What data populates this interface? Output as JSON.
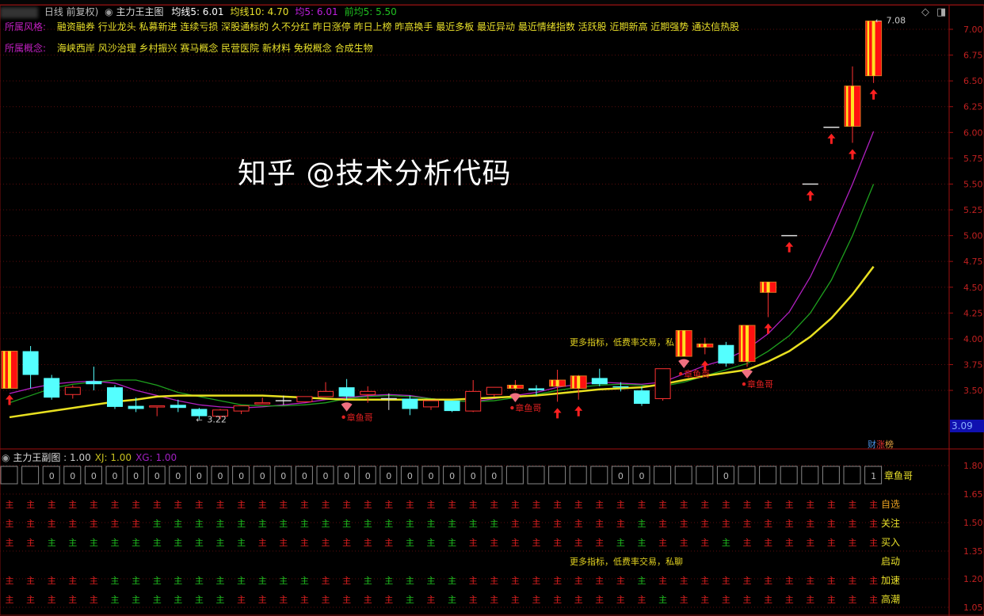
{
  "header": {
    "period": "日线 前复权)",
    "indicator_name": "主力王主图",
    "ma_items": [
      {
        "label": "均线5: 6.01",
        "color": "#ffffff"
      },
      {
        "label": "均线10: 4.70",
        "color": "#e8e02a"
      },
      {
        "label": "均5: 6.01",
        "color": "#c020e0"
      },
      {
        "label": "前均5: 5.50",
        "color": "#20c020"
      }
    ]
  },
  "style_row": {
    "label": "所属风格:",
    "tags": "融资融券 行业龙头 私募新进 连续亏损 深股通标的 久不分红 昨日涨停 昨日上榜 昨高换手 最近多板 最近异动 最近情绪指数 活跃股 近期新高 近期强势 通达信热股"
  },
  "concept_row": {
    "label": "所属概念:",
    "tags": "海峡西岸 风沙治理 乡村振兴 赛马概念 民营医院 新材料 免税概念 合成生物"
  },
  "main_chart_promo": "更多指标，低费率交易，私",
  "sub_chart_promo": "更多指标，低费率交易，私聊",
  "watermark": "知乎 @技术分析代码",
  "current_price_tag": "3.09",
  "rank_badge": {
    "parts": [
      "财",
      "涨",
      "榜"
    ],
    "colors": [
      "#4a90e0",
      "#e03030",
      "#e0a040"
    ]
  },
  "icons": [
    "diamond-icon",
    "panel-toggle-icon"
  ],
  "chart_data": {
    "type": "candlestick",
    "y_axis_ticks": [
      "7.00",
      "6.75",
      "6.50",
      "6.25",
      "6.00",
      "5.75",
      "5.50",
      "5.25",
      "5.00",
      "4.75",
      "4.50",
      "4.25",
      "4.00",
      "3.75",
      "3.50"
    ],
    "ylim": [
      3.2,
      7.1
    ],
    "grid": true,
    "high_label": "7.08",
    "low_label": "3.22",
    "candles_ohlc": [
      [
        3.52,
        3.88,
        3.52,
        3.88
      ],
      [
        3.88,
        3.93,
        3.52,
        3.65
      ],
      [
        3.62,
        3.65,
        3.41,
        3.43
      ],
      [
        3.46,
        3.55,
        3.42,
        3.53
      ],
      [
        3.59,
        3.73,
        3.5,
        3.56
      ],
      [
        3.53,
        3.55,
        3.32,
        3.34
      ],
      [
        3.35,
        3.43,
        3.29,
        3.32
      ],
      [
        3.34,
        3.35,
        3.25,
        3.35
      ],
      [
        3.36,
        3.41,
        3.29,
        3.33
      ],
      [
        3.32,
        3.33,
        3.22,
        3.25
      ],
      [
        3.25,
        3.32,
        3.22,
        3.31
      ],
      [
        3.3,
        3.35,
        3.27,
        3.35
      ],
      [
        3.37,
        3.43,
        3.37,
        3.38
      ],
      [
        3.4,
        3.45,
        3.36,
        3.4
      ],
      [
        3.39,
        3.44,
        3.39,
        3.44
      ],
      [
        3.44,
        3.58,
        3.44,
        3.49
      ],
      [
        3.53,
        3.61,
        3.41,
        3.44
      ],
      [
        3.46,
        3.54,
        3.38,
        3.49
      ],
      [
        3.42,
        3.47,
        3.31,
        3.42
      ],
      [
        3.42,
        3.45,
        3.26,
        3.32
      ],
      [
        3.34,
        3.4,
        3.31,
        3.4
      ],
      [
        3.4,
        3.4,
        3.29,
        3.3
      ],
      [
        3.3,
        3.6,
        3.29,
        3.49
      ],
      [
        3.46,
        3.53,
        3.44,
        3.53
      ],
      [
        3.52,
        3.6,
        3.5,
        3.55
      ],
      [
        3.52,
        3.55,
        3.45,
        3.5
      ],
      [
        3.54,
        3.7,
        3.39,
        3.6
      ],
      [
        3.52,
        3.65,
        3.41,
        3.64
      ],
      [
        3.62,
        3.71,
        3.54,
        3.56
      ],
      [
        3.54,
        3.58,
        3.49,
        3.53
      ],
      [
        3.5,
        3.54,
        3.35,
        3.37
      ],
      [
        3.42,
        3.71,
        3.4,
        3.71
      ],
      [
        3.83,
        4.08,
        3.83,
        4.08
      ],
      [
        3.92,
        4.01,
        3.85,
        3.95
      ],
      [
        3.94,
        3.97,
        3.73,
        3.76
      ],
      [
        3.78,
        4.13,
        3.73,
        4.13
      ],
      [
        4.45,
        4.55,
        4.21,
        4.55
      ],
      [
        5.0,
        5.0,
        5.0,
        5.0
      ],
      [
        5.5,
        5.5,
        5.5,
        5.5
      ],
      [
        6.05,
        6.05,
        6.05,
        6.05
      ],
      [
        6.06,
        6.64,
        5.9,
        6.45
      ],
      [
        6.55,
        7.08,
        6.48,
        7.08
      ]
    ],
    "candle_styles": [
      "limit",
      "down",
      "down",
      "up",
      "down",
      "down",
      "down",
      "up",
      "down",
      "down",
      "up",
      "up",
      "up",
      "doji",
      "up",
      "up",
      "down",
      "up",
      "doji",
      "down",
      "up",
      "down",
      "up",
      "up",
      "limit",
      "down",
      "limit",
      "limit",
      "down",
      "down",
      "down",
      "up",
      "limit",
      "limit",
      "down",
      "limit",
      "limit",
      "doji",
      "doji",
      "doji",
      "limit",
      "limit"
    ],
    "up_arrow_indices": [
      0,
      26,
      27,
      33,
      36,
      37,
      38,
      39,
      40,
      41
    ],
    "signal_markers": [
      {
        "index": 16,
        "label": "章鱼哥"
      },
      {
        "index": 24,
        "label": "章鱼哥"
      },
      {
        "index": 32,
        "label": "章鱼哥"
      },
      {
        "index": 35,
        "label": "章鱼哥"
      }
    ],
    "series": [
      {
        "name": "均5",
        "color": "#b020c0",
        "values": [
          3.47,
          3.52,
          3.56,
          3.58,
          3.59,
          3.57,
          3.5,
          3.45,
          3.4,
          3.36,
          3.34,
          3.33,
          3.34,
          3.36,
          3.38,
          3.41,
          3.43,
          3.45,
          3.46,
          3.45,
          3.42,
          3.4,
          3.39,
          3.42,
          3.45,
          3.48,
          3.53,
          3.56,
          3.58,
          3.57,
          3.56,
          3.58,
          3.66,
          3.74,
          3.8,
          3.9,
          4.05,
          4.26,
          4.6,
          5.03,
          5.5,
          6.01
        ]
      },
      {
        "name": "前均5",
        "color": "#1ea01e",
        "values": [
          3.38,
          3.45,
          3.52,
          3.56,
          3.58,
          3.6,
          3.6,
          3.55,
          3.48,
          3.44,
          3.4,
          3.36,
          3.35,
          3.35,
          3.36,
          3.38,
          3.42,
          3.44,
          3.45,
          3.44,
          3.42,
          3.4,
          3.39,
          3.4,
          3.43,
          3.46,
          3.5,
          3.53,
          3.55,
          3.56,
          3.55,
          3.54,
          3.58,
          3.64,
          3.7,
          3.76,
          3.88,
          4.03,
          4.25,
          4.57,
          5.0,
          5.5
        ]
      },
      {
        "name": "均线10",
        "color": "#e8e020",
        "values": [
          3.24,
          3.27,
          3.3,
          3.33,
          3.36,
          3.39,
          3.41,
          3.44,
          3.45,
          3.45,
          3.45,
          3.45,
          3.45,
          3.44,
          3.43,
          3.42,
          3.41,
          3.41,
          3.41,
          3.41,
          3.41,
          3.41,
          3.42,
          3.43,
          3.44,
          3.45,
          3.47,
          3.49,
          3.51,
          3.52,
          3.53,
          3.56,
          3.6,
          3.64,
          3.67,
          3.7,
          3.78,
          3.88,
          4.02,
          4.2,
          4.43,
          4.7
        ]
      }
    ]
  },
  "sub_chart": {
    "title": "主力王副图",
    "values": [
      {
        "label": ": 1.00",
        "color": "#cccccc"
      },
      {
        "label": "XJ: 1.00",
        "color": "#c8c020"
      },
      {
        "label": "XG: 1.00",
        "color": "#a020c0"
      }
    ],
    "y_axis_ticks": [
      "1.80",
      "1.65",
      "1.50",
      "1.35",
      "1.20",
      "1.05"
    ],
    "box_row_label": "章鱼哥",
    "box_values": [
      "",
      "",
      "0",
      "0",
      "0",
      "0",
      "0",
      "0",
      "0",
      "0",
      "0",
      "0",
      "0",
      "0",
      "0",
      "0",
      "0",
      "0",
      "0",
      "0",
      "0",
      "0",
      "0",
      "0",
      "",
      "",
      "",
      "",
      "",
      "0",
      "0",
      "",
      "",
      "",
      "0",
      "",
      "",
      "",
      "",
      "",
      "",
      "1"
    ],
    "glyph": "主",
    "glyph_colors": {
      "R": "#e02020",
      "G": "#20c020"
    },
    "rows": [
      {
        "label": "自选",
        "cells": "RRRRRRRRRRRRRRRRRRRRRRRRRRRRRRRRRRRRRRRRRR"
      },
      {
        "label": "关注",
        "cells": "RRRRRRRGGGGGGGGGGGGGGGGGRRRRRRGRRRRRRRRRRR"
      },
      {
        "label": "买入",
        "cells": "RRGGGGGGGGGGRRRRRRRGGGRRRRRRRGGRRRGRRRRRRR"
      },
      {
        "label": "启动",
        "cells": ""
      },
      {
        "label": "加速",
        "cells": "RRRRRGGGGGGGGGGRRGGGGGRRRRRRRRGRRRRRRRRRRR"
      },
      {
        "label": "高潮",
        "cells": "RRRRRGGGGGGRRRRRRRRGRGRRRRRRRRRGRRRRRRRRRRR"
      }
    ]
  }
}
